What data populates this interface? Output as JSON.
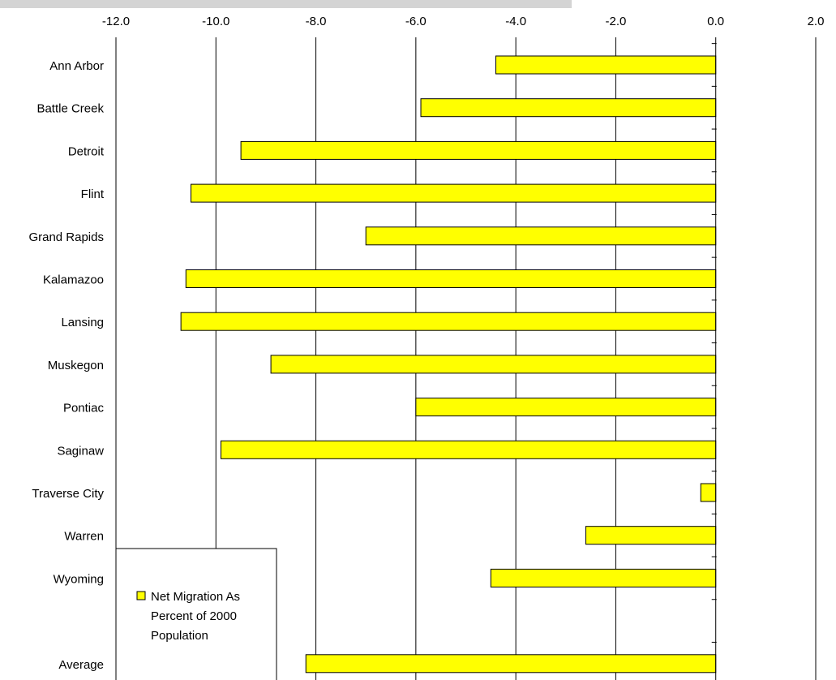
{
  "chart_data": {
    "type": "bar",
    "orientation": "horizontal",
    "categories": [
      "Ann Arbor",
      "Battle Creek",
      "Detroit",
      "Flint",
      "Grand Rapids",
      "Kalamazoo",
      "Lansing",
      "Muskegon",
      "Pontiac",
      "Saginaw",
      "Traverse City",
      "Warren",
      "Wyoming",
      "",
      "Average"
    ],
    "series": [
      {
        "name": "Net Migration As Percent of 2000 Population",
        "legend_lines": [
          "Net Migration As",
          "Percent of 2000",
          "Population"
        ],
        "values": [
          -4.4,
          -5.9,
          -9.5,
          -10.5,
          -7.0,
          -10.6,
          -10.7,
          -8.9,
          -6.0,
          -9.9,
          -0.3,
          -2.6,
          -4.5,
          null,
          -8.2
        ]
      }
    ],
    "xlim": [
      -12.0,
      2.0
    ],
    "xticks": [
      "-12.0",
      "-10.0",
      "-8.0",
      "-6.0",
      "-4.0",
      "-2.0",
      "0.0",
      "2.0"
    ],
    "x_axis_position": "top",
    "grid": "vertical",
    "legend_position": "bottom-left",
    "title": "",
    "xlabel": "",
    "ylabel": "",
    "colors": {
      "bar_fill": "#ffff00",
      "bar_stroke": "#000000",
      "grid": "#000000"
    }
  }
}
